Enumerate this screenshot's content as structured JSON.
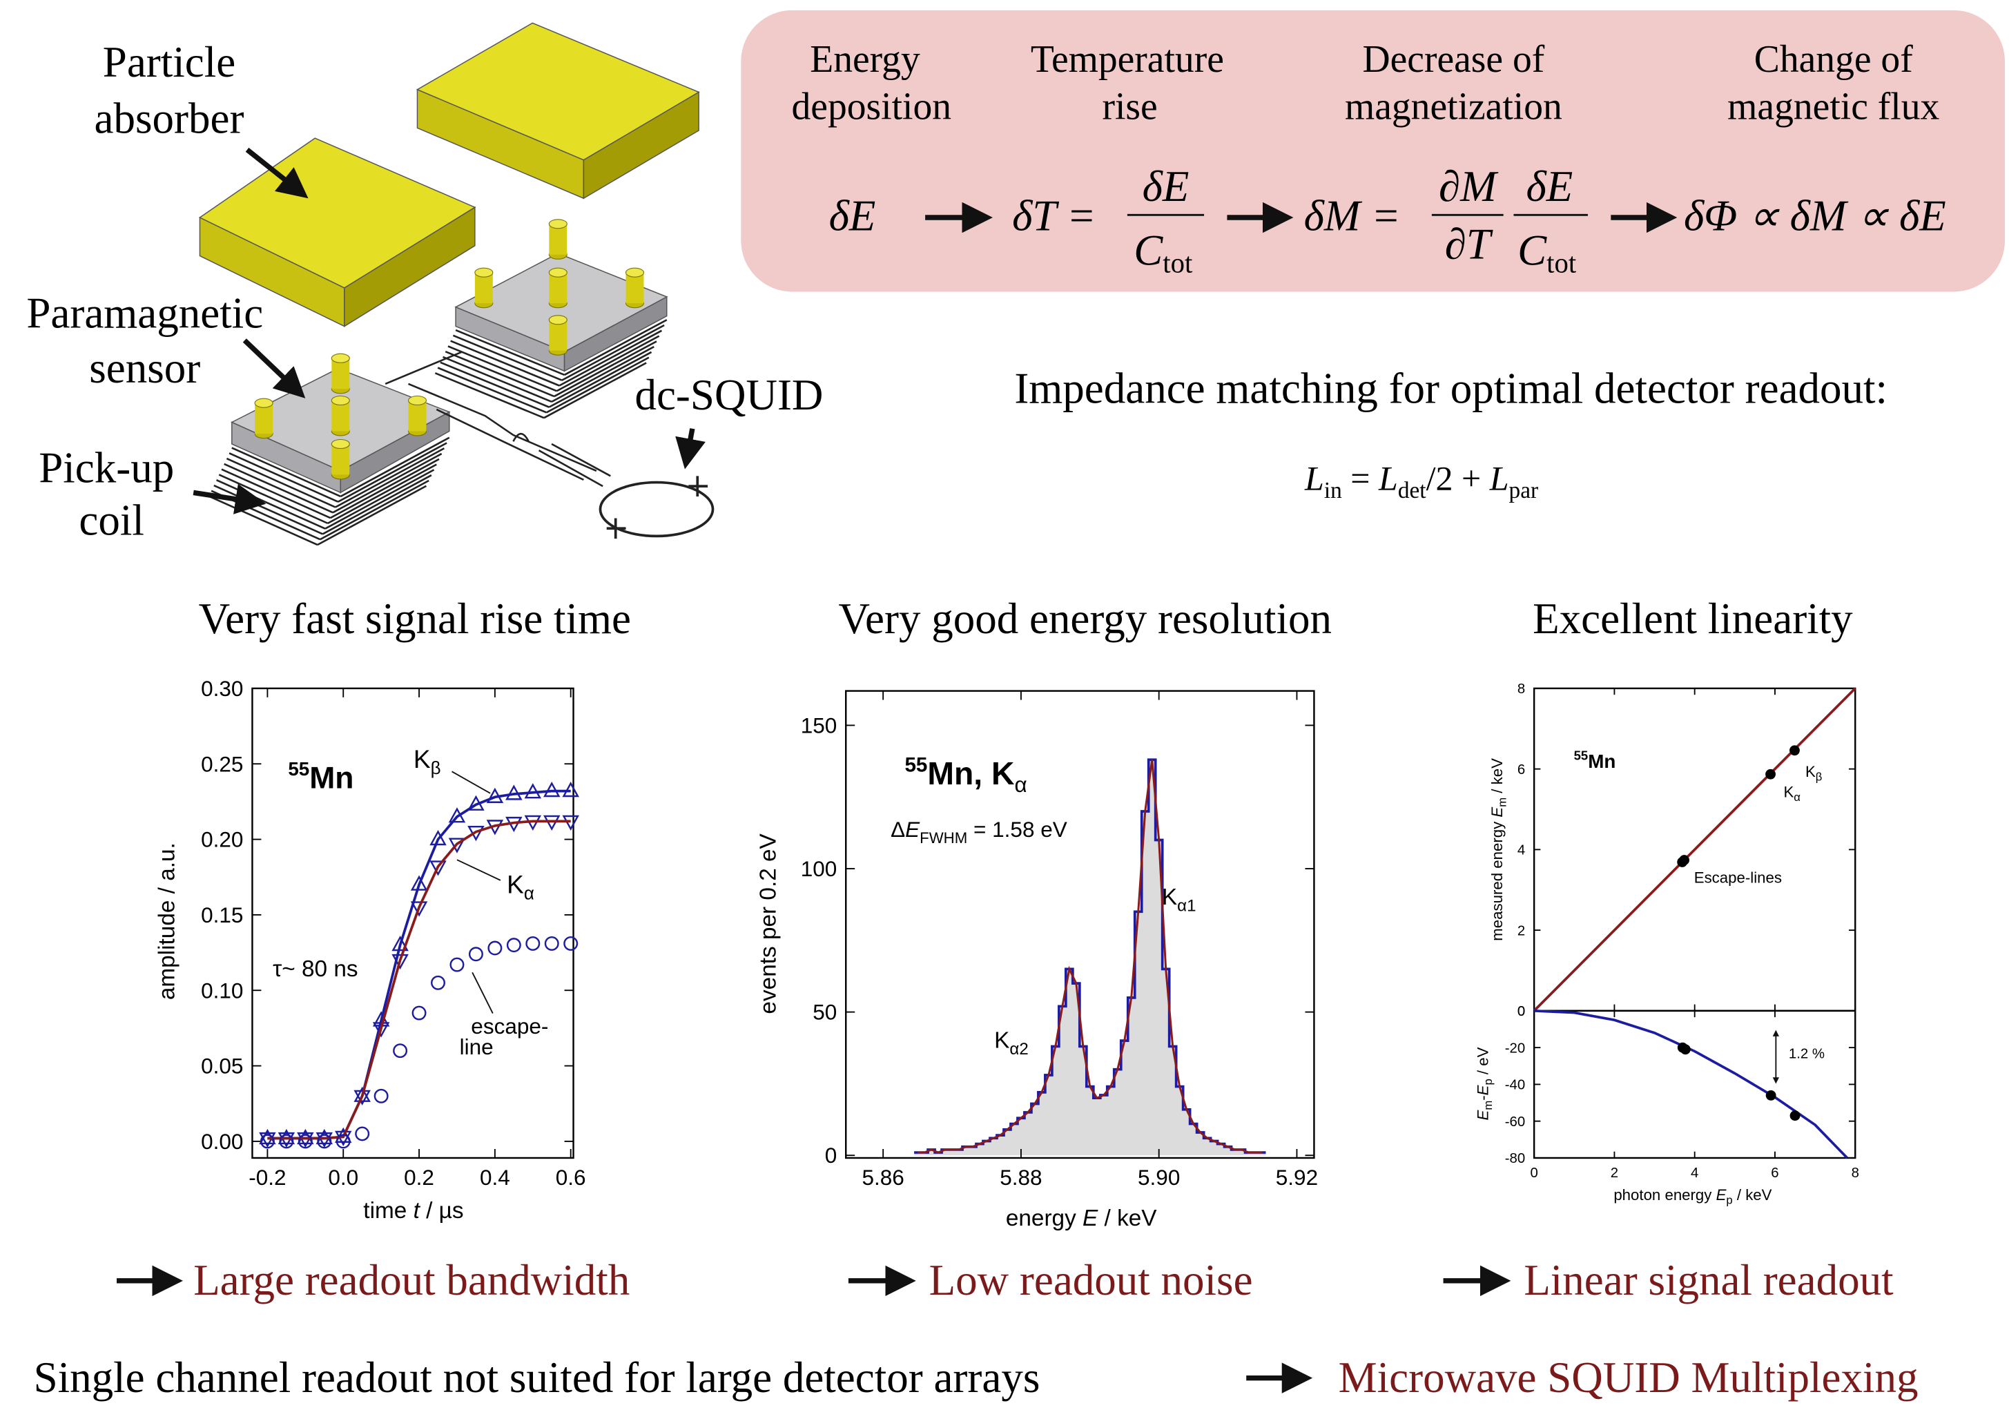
{
  "diagram": {
    "absorber_label": [
      "Particle",
      "absorber"
    ],
    "sensor_label": [
      "Paramagnetic",
      "sensor"
    ],
    "coil_label": [
      "Pick-up",
      "coil"
    ],
    "squid_label": "dc-SQUID"
  },
  "flow": {
    "steps": [
      [
        "Energy",
        "deposition"
      ],
      [
        "Temperature",
        "rise"
      ],
      [
        "Decrease of",
        "magnetization"
      ],
      [
        "Change of",
        "magnetic flux"
      ]
    ],
    "f0": "δE",
    "f1": {
      "lhs": "δT =",
      "num": "δE",
      "den": "C",
      "den_sub": "tot"
    },
    "f2": {
      "lhs": "δM =",
      "num1": "∂M",
      "den1": "∂T",
      "num2": "δE",
      "den2": "C",
      "den2_sub": "tot"
    },
    "f3": "δΦ ∝ δM ∝ δE"
  },
  "impedance": {
    "text": "Impedance matching for optimal detector readout:",
    "formula": [
      "L",
      "in",
      " = ",
      "L",
      "det",
      "/2 + ",
      "L",
      "par"
    ]
  },
  "chart_data": [
    {
      "type": "scatter",
      "title": "Very fast signal rise time",
      "xlabel": [
        "time ",
        "t",
        " / µs"
      ],
      "ylabel": "amplitude / a.u.",
      "xlim": [
        -0.24,
        0.607
      ],
      "ylim": [
        -0.011,
        0.3
      ],
      "xticks": [
        -0.2,
        {
          "value": 0,
          "label": "0.0"
        },
        0.2,
        0.4,
        0.6
      ],
      "yticks": [
        {
          "value": 0,
          "label": "0.00"
        },
        {
          "value": 0.05,
          "label": "0.05"
        },
        {
          "value": 0.1,
          "label": "0.10"
        },
        {
          "value": 0.15,
          "label": "0.15"
        },
        {
          "value": 0.2,
          "label": "0.20"
        },
        {
          "value": 0.25,
          "label": "0.25"
        },
        {
          "value": 0.3,
          "label": "0.30"
        }
      ],
      "x": [
        -0.2,
        -0.15,
        -0.1,
        -0.05,
        0,
        0.05,
        0.1,
        0.15,
        0.2,
        0.25,
        0.3,
        0.35,
        0.4,
        0.45,
        0.5,
        0.55,
        0.6
      ],
      "series": [
        {
          "marker": "triangle-up",
          "color": "#1c1ca0",
          "fit_color": "#1c1ca0",
          "values": [
            0.002,
            0.002,
            0.002,
            0.002,
            0.003,
            0.03,
            0.08,
            0.13,
            0.17,
            0.2,
            0.215,
            0.223,
            0.228,
            0.23,
            0.231,
            0.232,
            0.232
          ]
        },
        {
          "marker": "triangle-down",
          "color": "#1c1ca0",
          "fit_color": "#8b1a1a",
          "values": [
            0.002,
            0.002,
            0.002,
            0.002,
            0.003,
            0.03,
            0.075,
            0.12,
            0.155,
            0.182,
            0.197,
            0.205,
            0.209,
            0.211,
            0.212,
            0.212,
            0.212
          ]
        },
        {
          "marker": "circle",
          "color": "#1c1ca0",
          "values": [
            0,
            0,
            0,
            0,
            0,
            0.005,
            0.03,
            0.06,
            0.085,
            0.105,
            0.117,
            0.124,
            0.128,
            0.13,
            0.131,
            0.131,
            0.131
          ]
        }
      ],
      "annotations": {
        "isotope": [
          "55",
          "Mn"
        ],
        "k_beta": [
          "K",
          "β"
        ],
        "k_alpha": [
          "K",
          "α"
        ],
        "tau": "τ~ 80 ns",
        "escape": [
          "escape-",
          "line"
        ]
      }
    },
    {
      "type": "spectrum",
      "title": "Very good energy resolution",
      "xlabel": [
        "energy ",
        "E",
        " / keV"
      ],
      "ylabel": "events per 0.2 eV",
      "xlim": [
        5.8546,
        5.9225
      ],
      "ylim": [
        -0.9,
        162
      ],
      "xticks": [
        5.86,
        5.88,
        {
          "value": 5.9,
          "label": "5.90"
        },
        5.92
      ],
      "yticks": [
        0,
        50,
        100,
        150
      ],
      "x": [
        5.865,
        5.866,
        5.867,
        5.868,
        5.869,
        5.87,
        5.871,
        5.872,
        5.873,
        5.874,
        5.875,
        5.876,
        5.877,
        5.878,
        5.879,
        5.88,
        5.881,
        5.882,
        5.883,
        5.884,
        5.885,
        5.886,
        5.887,
        5.888,
        5.889,
        5.89,
        5.891,
        5.892,
        5.893,
        5.894,
        5.895,
        5.896,
        5.897,
        5.898,
        5.899,
        5.9,
        5.901,
        5.902,
        5.903,
        5.904,
        5.905,
        5.906,
        5.907,
        5.908,
        5.909,
        5.91,
        5.911,
        5.912,
        5.913,
        5.914,
        5.915
      ],
      "values": [
        1,
        1,
        2,
        1,
        2,
        2,
        2,
        3,
        3,
        4,
        5,
        6,
        7,
        9,
        11,
        13,
        15,
        18,
        22,
        28,
        38,
        52,
        65,
        60,
        38,
        24,
        20,
        21,
        24,
        30,
        40,
        55,
        85,
        120,
        138,
        110,
        65,
        38,
        24,
        16,
        11,
        8,
        6,
        5,
        4,
        3,
        2,
        2,
        1,
        1,
        1
      ],
      "color": "#1c1ca0",
      "fill": "#dcdcdc",
      "fit_color": "#8b1a1a",
      "annotations": {
        "isotope": [
          "55",
          "Mn, K",
          "α"
        ],
        "fwhm": [
          "Δ",
          "E",
          "FWHM",
          " = 1.58 eV"
        ],
        "k_alpha1": [
          "K",
          "α1"
        ],
        "k_alpha2": [
          "K",
          "α2"
        ]
      }
    },
    {
      "type": "scatter",
      "title": "Excellent linearity",
      "xlabel": [
        "photon energy ",
        "E",
        "p",
        " / keV"
      ],
      "xlim": [
        0,
        8
      ],
      "xticks": [
        0,
        2,
        4,
        6,
        8
      ],
      "panels": [
        {
          "ylim": [
            0,
            8
          ],
          "yticks": [
            0,
            2,
            4,
            6,
            8
          ],
          "ylabel": [
            "measured energy ",
            "E",
            "m",
            " / keV"
          ],
          "series": [
            {
              "color": "#8b1a1a",
              "x": [
                0,
                8
              ],
              "values": [
                0,
                8
              ]
            },
            {
              "marker": "dot",
              "color": "#000000",
              "x": [
                3.69,
                3.74,
                5.89,
                6.49
              ],
              "values": [
                3.69,
                3.74,
                5.87,
                6.46
              ]
            }
          ]
        },
        {
          "ylim": [
            -80,
            0
          ],
          "yticks": [
            -80,
            -60,
            -40,
            -20,
            0
          ],
          "ylabel": [
            "E",
            "m",
            "-",
            "E",
            "p",
            " / eV"
          ],
          "series": [
            {
              "color": "#1c1ca0",
              "x": [
                0,
                1,
                2,
                3,
                4,
                5,
                6,
                7,
                7.8
              ],
              "values": [
                0,
                -1,
                -5,
                -12,
                -22,
                -34,
                -47,
                -62,
                -80
              ]
            },
            {
              "marker": "dot",
              "color": "#000000",
              "x": [
                3.7,
                3.77,
                5.9,
                6.5
              ],
              "values": [
                -20,
                -21,
                -46,
                -57
              ]
            }
          ]
        }
      ],
      "annotations": {
        "isotope": [
          "55",
          "Mn"
        ],
        "k_alpha": [
          "K",
          "α"
        ],
        "k_beta": [
          "K",
          "β"
        ],
        "escape": "Escape-lines",
        "deviation": "1.2 %"
      }
    }
  ],
  "conclusions": [
    "Large readout bandwidth",
    "Low readout noise",
    "Linear signal readout"
  ],
  "footer": {
    "text": "Single channel readout not suited for large detector arrays",
    "result": "Microwave SQUID Multiplexing"
  }
}
